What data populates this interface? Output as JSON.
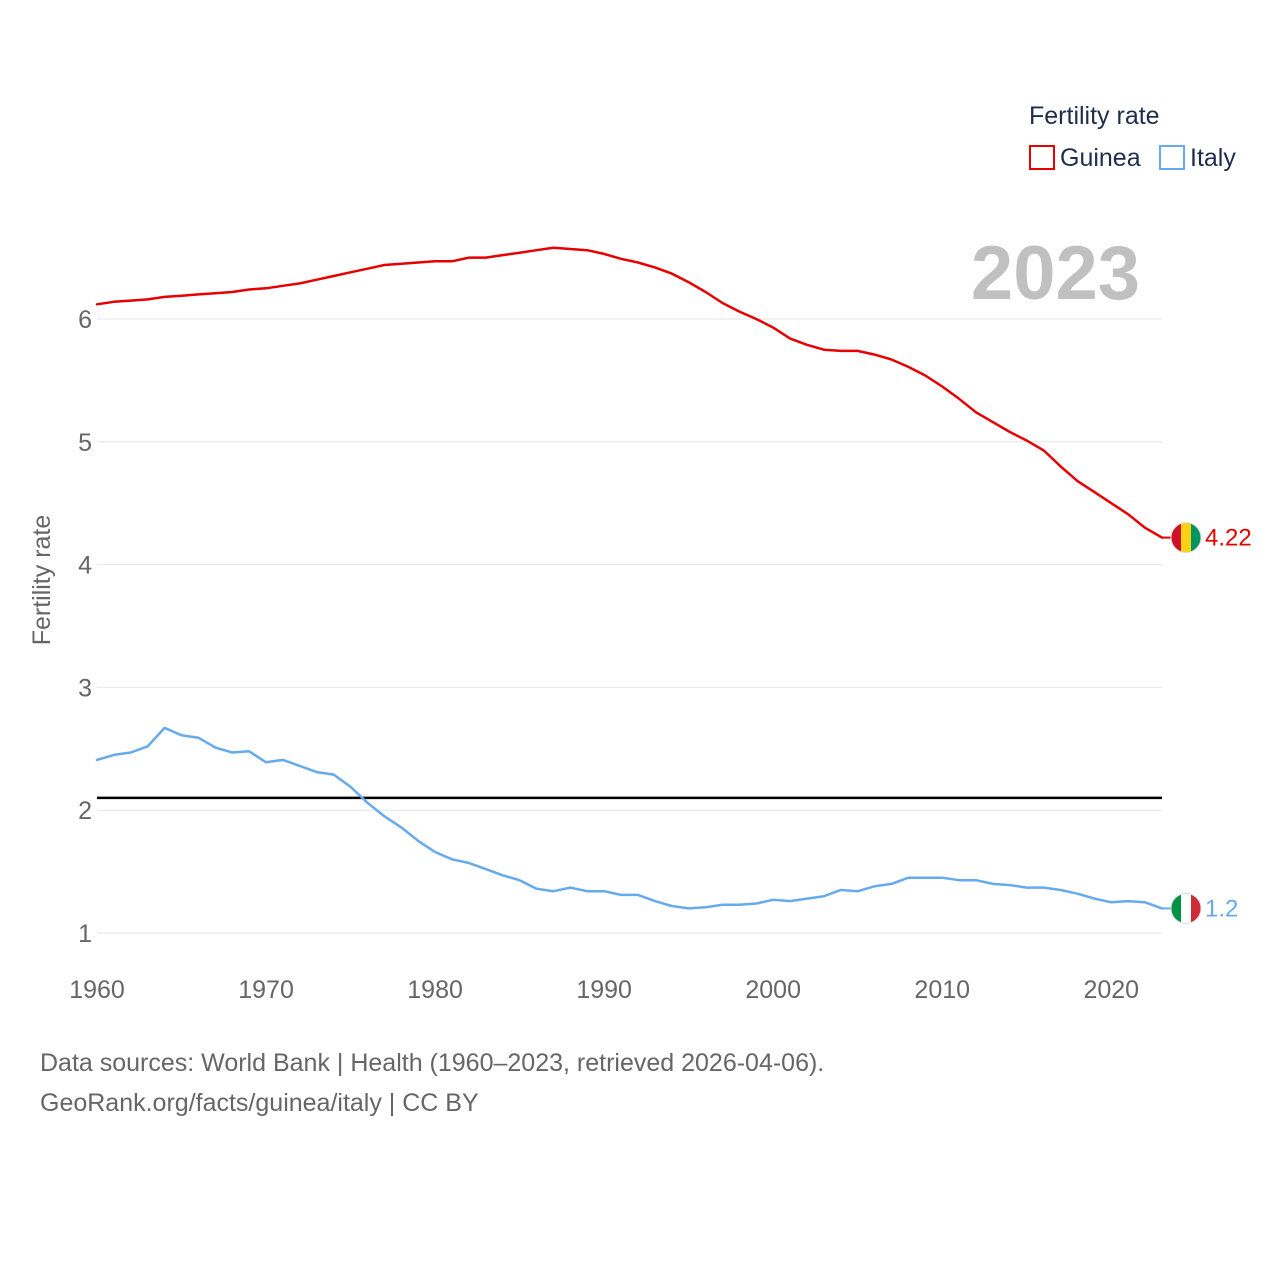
{
  "chart_data": {
    "type": "line",
    "title": "",
    "year_label": "2023",
    "xlabel": "",
    "ylabel": "Fertility rate",
    "xlim": [
      1960,
      2023
    ],
    "ylim": [
      0.8,
      6.8
    ],
    "x_ticks": [
      1960,
      1970,
      1980,
      1990,
      2000,
      2010,
      2020
    ],
    "y_ticks": [
      1,
      2,
      3,
      4,
      5,
      6
    ],
    "grid": true,
    "legend": {
      "title": "Fertility rate",
      "position": "top-right"
    },
    "reference_line": {
      "y": 2.1,
      "color": "#000000"
    },
    "x": [
      1960,
      1961,
      1962,
      1963,
      1964,
      1965,
      1966,
      1967,
      1968,
      1969,
      1970,
      1971,
      1972,
      1973,
      1974,
      1975,
      1976,
      1977,
      1978,
      1979,
      1980,
      1981,
      1982,
      1983,
      1984,
      1985,
      1986,
      1987,
      1988,
      1989,
      1990,
      1991,
      1992,
      1993,
      1994,
      1995,
      1996,
      1997,
      1998,
      1999,
      2000,
      2001,
      2002,
      2003,
      2004,
      2005,
      2006,
      2007,
      2008,
      2009,
      2010,
      2011,
      2012,
      2013,
      2014,
      2015,
      2016,
      2017,
      2018,
      2019,
      2020,
      2021,
      2022,
      2023
    ],
    "series": [
      {
        "name": "Guinea",
        "color": "#e60000",
        "end_label": "4.22",
        "flag": "guinea",
        "values": [
          6.12,
          6.14,
          6.15,
          6.16,
          6.18,
          6.19,
          6.2,
          6.21,
          6.22,
          6.24,
          6.25,
          6.27,
          6.29,
          6.32,
          6.35,
          6.38,
          6.41,
          6.44,
          6.45,
          6.46,
          6.47,
          6.47,
          6.5,
          6.5,
          6.52,
          6.54,
          6.56,
          6.58,
          6.57,
          6.56,
          6.53,
          6.49,
          6.46,
          6.42,
          6.37,
          6.3,
          6.22,
          6.13,
          6.06,
          6.0,
          5.93,
          5.84,
          5.79,
          5.75,
          5.74,
          5.74,
          5.71,
          5.67,
          5.61,
          5.54,
          5.45,
          5.35,
          5.24,
          5.16,
          5.08,
          5.01,
          4.93,
          4.8,
          4.68,
          4.59,
          4.5,
          4.41,
          4.3,
          4.22
        ]
      },
      {
        "name": "Italy",
        "color": "#66aaee",
        "end_label": "1.2",
        "flag": "italy",
        "values": [
          2.41,
          2.45,
          2.47,
          2.52,
          2.67,
          2.61,
          2.59,
          2.51,
          2.47,
          2.48,
          2.39,
          2.41,
          2.36,
          2.31,
          2.29,
          2.19,
          2.06,
          1.95,
          1.86,
          1.75,
          1.66,
          1.6,
          1.57,
          1.52,
          1.47,
          1.43,
          1.36,
          1.34,
          1.37,
          1.34,
          1.34,
          1.31,
          1.31,
          1.26,
          1.22,
          1.2,
          1.21,
          1.23,
          1.23,
          1.24,
          1.27,
          1.26,
          1.28,
          1.3,
          1.35,
          1.34,
          1.38,
          1.4,
          1.45,
          1.45,
          1.45,
          1.43,
          1.43,
          1.4,
          1.39,
          1.37,
          1.37,
          1.35,
          1.32,
          1.28,
          1.25,
          1.26,
          1.25,
          1.2
        ]
      }
    ]
  },
  "footer": {
    "source": "Data sources: World Bank | Health (1960–2023, retrieved 2026-04-06).",
    "credit": "GeoRank.org/facts/guinea/italy | CC BY"
  }
}
